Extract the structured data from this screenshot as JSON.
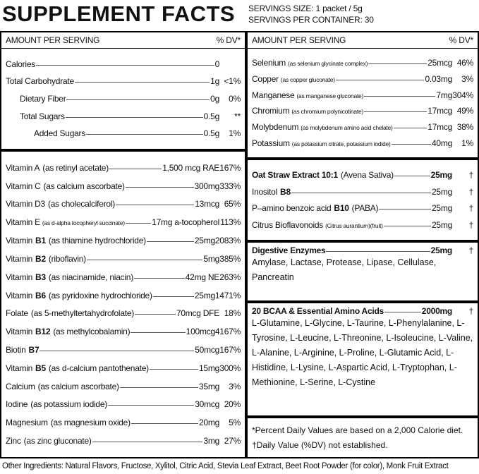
{
  "header": {
    "title": "SUPPLEMENT FACTS",
    "serving_size": "SERVINGS SIZE: 1 packet / 5g",
    "servings_per_container": "SERVINGS PER CONTAINER: 30"
  },
  "left": {
    "header": {
      "amount": "AMOUNT PER SERVING",
      "dv": "% DV*"
    },
    "sections": [
      {
        "rows": [
          {
            "name": "Calories",
            "amount": "0"
          },
          {
            "name": "Total Carbohydrate",
            "amount": "1g",
            "dv": "<1%",
            "sub": [
              {
                "name": "Dietary Fiber",
                "amount": "0g",
                "dv": "0%"
              },
              {
                "name": "Total Sugars",
                "amount": "0.5g",
                "dv": "**",
                "sub": [
                  {
                    "name": "Added Sugars",
                    "amount": "0.5g",
                    "dv": "1%"
                  }
                ]
              }
            ]
          }
        ]
      },
      {
        "rows": [
          {
            "name": "Vitamin A",
            "source": "(as retinyl acetate)",
            "amount": "1,500 mcg RAE",
            "dv": "167%"
          },
          {
            "name": "Vitamin C",
            "source": "(as calcium ascorbate)",
            "amount": "300mg",
            "dv": "333%"
          },
          {
            "name": "Vitamin D3",
            "source": "(as cholecalciferol)",
            "amount": "13mcg",
            "dv": "65%"
          },
          {
            "name": "Vitamin E",
            "note": "(as d-alpha tocopheryl succinate)",
            "amount": "17mg a-tocopherol",
            "dv": "113%"
          },
          {
            "name": "Vitamin",
            "bold": "B1",
            "source": "(as thiamine hydrochloride)",
            "amount": "25mg",
            "dv": "2083%"
          },
          {
            "name": "Vitamin",
            "bold": "B2",
            "source": "(riboflavin)",
            "amount": "5mg",
            "dv": "385%"
          },
          {
            "name": "Vitamin",
            "bold": "B3",
            "source": "(as niacinamide, niacin)",
            "amount": "42mg NE",
            "dv": "263%"
          },
          {
            "name": "Vitamin",
            "bold": "B6",
            "source": "(as pyridoxine hydrochloride)",
            "amount": "25mg",
            "dv": "1471%"
          },
          {
            "name": "Folate",
            "source": "(as 5-methyltertahydrofolate)",
            "amount": "70mcg DFE",
            "dv": "18%"
          },
          {
            "name": "Vitamin",
            "bold": "B12",
            "source": "(as methylcobalamin)",
            "amount": "100mcg",
            "dv": "4167%"
          },
          {
            "name": "Biotin",
            "bold": "B7",
            "amount": "50mcg",
            "dv": "167%"
          },
          {
            "name": "Vitamin",
            "bold": "B5",
            "source": "(as d-calcium pantothenate)",
            "amount": "15mg",
            "dv": "300%"
          },
          {
            "name": "Calcium",
            "source": "(as calcium ascorbate)",
            "amount": "35mg",
            "dv": "3%"
          },
          {
            "name": "Iodine",
            "source": "(as potassium iodide)",
            "amount": "30mcg",
            "dv": "20%"
          },
          {
            "name": "Magnesium",
            "source": "(as magnesium oxide)",
            "amount": "20mg",
            "dv": "5%"
          },
          {
            "name": "Zinc",
            "source": "(as zinc gluconate)",
            "amount": "3mg",
            "dv": "27%"
          }
        ]
      }
    ]
  },
  "right": {
    "header": {
      "amount": "AMOUNT PER SERVING",
      "dv": "% DV*"
    },
    "sections": [
      {
        "rows": [
          {
            "name": "Selenium",
            "note": "(as selenium glycinate complex)",
            "amount": "25mcg",
            "dv": "46%"
          },
          {
            "name": "Copper",
            "note": "(as copper gluconate)",
            "amount": "0.03mg",
            "dv": "3%"
          },
          {
            "name": "Manganese",
            "note": "(as manganese gluconate)",
            "amount": "7mg",
            "dv": "304%"
          },
          {
            "name": "Chromium",
            "note": "(as chromium polynicotinate)",
            "amount": "17mcg",
            "dv": "49%"
          },
          {
            "name": "Molybdenum",
            "note": "(as molybdenum amino acid chelate)",
            "amount": "17mcg",
            "dv": "38%"
          },
          {
            "name": "Potassium",
            "note": "(as potassium citrate, potassium iodide)",
            "amount": "40mg",
            "dv": "1%"
          }
        ]
      },
      {
        "title": {
          "name": "Oat Straw Extract 10:1",
          "source": "(Avena Sativa)",
          "amount": "25mg",
          "dv": "†"
        },
        "rows": [
          {
            "name": "Inositol",
            "bold": "B8",
            "amount": "25mg",
            "dv": "†"
          },
          {
            "name": "P–amino benzoic acid",
            "bold": "B10",
            "source": "(PABA)",
            "amount": "25mg",
            "dv": "†"
          },
          {
            "name": "Citrus Bioflavonoids",
            "note": "(Citrus aurantium)(fruit)",
            "amount": "25mg",
            "dv": "†"
          }
        ]
      },
      {
        "title": {
          "name": "Digestive Enzymes",
          "amount": "25mg",
          "dv": "†"
        },
        "text": "Amylase, Lactase, Protease, Lipase, Cellulase, Pancreatin"
      },
      {
        "title": {
          "name": "20 BCAA & Essential Amino Acids",
          "amount": "2000mg",
          "dv": "†"
        },
        "text": "L-Glutamine, L-Glycine, L-Taurine, L-Phenylalanine, L-Tyrosine, L-Leucine, L-Threonine, L-Isoleucine, L-Valine, L-Alanine, L-Arginine, L-Proline, L-Glutamic Acid, L-Histidine, L-Lysine, L-Aspartic Acid, L-Tryptophan, L-Methionine, L-Serine, L-Cystine"
      }
    ],
    "footnotes": [
      "*Percent Daily Values are based on a 2,000 Calorie diet.",
      "†Daily Value (%DV) not established."
    ]
  },
  "other_ingredients": "Other Ingredients: Natural Flavors, Fructose, Xylitol, Citric Acid, Stevia Leaf Extract, Beet Root Powder (for color), Monk Fruit Extract"
}
